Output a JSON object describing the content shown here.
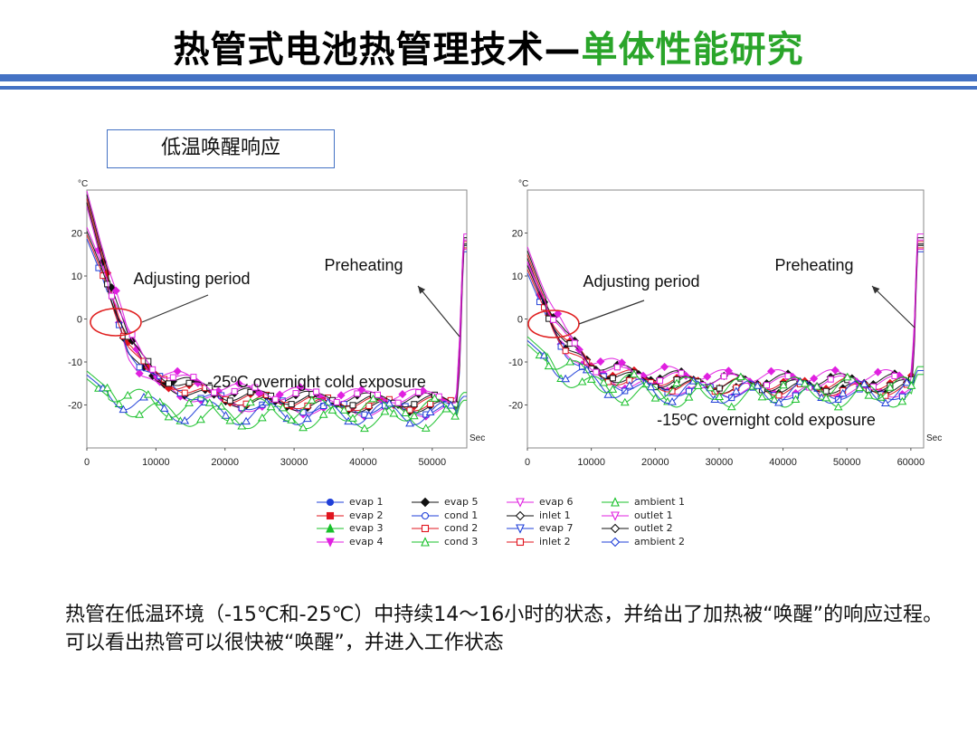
{
  "slide": {
    "title_main": "热管式电池热管理技术",
    "title_dash": "—",
    "title_sub": "单体性能研究",
    "box_label": "低温唤醒响应",
    "caption": "热管在低温环境（-15℃和-25℃）中持续14～16小时的状态，并给出了加热被“唤醒”的响应过程。可以看出热管可以很快被“唤醒”，并进入工作状态"
  },
  "colors": {
    "accent": "#4472c4",
    "subtitle": "#2aa52a"
  },
  "chart_data": [
    {
      "type": "line",
      "title": "-25ºC overnight cold exposure",
      "ylabel": "°C",
      "xlabel": "Sec",
      "xlim": [
        0,
        55000
      ],
      "ylim": [
        -30,
        30
      ],
      "xticks": [
        0,
        10000,
        20000,
        30000,
        40000,
        50000
      ],
      "yticks": [
        20,
        10,
        0,
        -10,
        -20
      ],
      "annotations": [
        "Adjusting period",
        "Preheating"
      ],
      "groups": [
        {
          "name": "evaporators",
          "values": [
            [
              0,
              28
            ],
            [
              2000,
              16
            ],
            [
              4000,
              5
            ],
            [
              6000,
              -6
            ],
            [
              8000,
              -11
            ],
            [
              10000,
              -14
            ],
            [
              15000,
              -16
            ],
            [
              20000,
              -18
            ],
            [
              30000,
              -19
            ],
            [
              40000,
              -19.5
            ],
            [
              53500,
              -19.5
            ],
            [
              54000,
              -5
            ],
            [
              54500,
              18
            ]
          ]
        },
        {
          "name": "condensers",
          "values": [
            [
              0,
              20
            ],
            [
              2000,
              12
            ],
            [
              4000,
              3
            ],
            [
              6000,
              -5
            ],
            [
              8000,
              -10
            ],
            [
              10000,
              -13
            ],
            [
              15000,
              -16
            ],
            [
              20000,
              -18
            ],
            [
              30000,
              -19
            ],
            [
              40000,
              -19.5
            ],
            [
              53500,
              -19.5
            ],
            [
              54000,
              -10
            ],
            [
              54500,
              17
            ]
          ]
        },
        {
          "name": "ambient",
          "values": [
            [
              0,
              -13
            ],
            [
              3000,
              -17
            ],
            [
              6000,
              -19
            ],
            [
              10000,
              -21
            ],
            [
              20000,
              -22
            ],
            [
              40000,
              -22
            ],
            [
              53500,
              -22
            ],
            [
              54000,
              -19
            ],
            [
              54500,
              -18
            ]
          ]
        }
      ]
    },
    {
      "type": "line",
      "title": "-15ºC overnight cold exposure",
      "ylabel": "°C",
      "xlabel": "Sec",
      "xlim": [
        0,
        62000
      ],
      "ylim": [
        -30,
        30
      ],
      "xticks": [
        0,
        10000,
        20000,
        30000,
        40000,
        50000,
        60000
      ],
      "yticks": [
        20,
        10,
        0,
        -10,
        -20
      ],
      "annotations": [
        "Adjusting period",
        "Preheating"
      ],
      "groups": [
        {
          "name": "evaporators",
          "values": [
            [
              0,
              15
            ],
            [
              2000,
              7
            ],
            [
              4000,
              0
            ],
            [
              6000,
              -5
            ],
            [
              8000,
              -8
            ],
            [
              10000,
              -11
            ],
            [
              15000,
              -13
            ],
            [
              20000,
              -14
            ],
            [
              30000,
              -15
            ],
            [
              40000,
              -15
            ],
            [
              60000,
              -15
            ],
            [
              60500,
              -5
            ],
            [
              61000,
              18
            ]
          ]
        },
        {
          "name": "condensers",
          "values": [
            [
              0,
              12
            ],
            [
              2000,
              5
            ],
            [
              4000,
              -1
            ],
            [
              6000,
              -6
            ],
            [
              8000,
              -9
            ],
            [
              10000,
              -12
            ],
            [
              15000,
              -14
            ],
            [
              20000,
              -15
            ],
            [
              30000,
              -15.5
            ],
            [
              40000,
              -16
            ],
            [
              60000,
              -16
            ],
            [
              60500,
              -8
            ],
            [
              61000,
              17
            ]
          ]
        },
        {
          "name": "ambient",
          "values": [
            [
              0,
              -5
            ],
            [
              3000,
              -9
            ],
            [
              6000,
              -12
            ],
            [
              10000,
              -15
            ],
            [
              20000,
              -17
            ],
            [
              40000,
              -17
            ],
            [
              60000,
              -17
            ],
            [
              60500,
              -14
            ],
            [
              61000,
              -12
            ]
          ]
        }
      ]
    }
  ],
  "legend": [
    {
      "label": "evap 1",
      "color": "#1f3fd8",
      "marker": "circle",
      "fill": true
    },
    {
      "label": "evap 2",
      "color": "#e0141e",
      "marker": "square",
      "fill": true
    },
    {
      "label": "evap 3",
      "color": "#18c02a",
      "marker": "triangle",
      "fill": true
    },
    {
      "label": "evap 4",
      "color": "#e020e0",
      "marker": "triangle-down",
      "fill": true
    },
    {
      "label": "evap 5",
      "color": "#111111",
      "marker": "diamond",
      "fill": true
    },
    {
      "label": "cond 1",
      "color": "#1f3fd8",
      "marker": "circle",
      "fill": false
    },
    {
      "label": "cond 2",
      "color": "#e0141e",
      "marker": "square",
      "fill": false
    },
    {
      "label": "cond 3",
      "color": "#18c02a",
      "marker": "triangle",
      "fill": false
    },
    {
      "label": "evap 6",
      "color": "#e020e0",
      "marker": "triangle-down",
      "fill": false
    },
    {
      "label": "inlet 1",
      "color": "#111111",
      "marker": "diamond",
      "fill": false
    },
    {
      "label": "evap 7",
      "color": "#1f3fd8",
      "marker": "triangle-down",
      "fill": false
    },
    {
      "label": "inlet 2",
      "color": "#e0141e",
      "marker": "square",
      "fill": false
    },
    {
      "label": "ambient 1",
      "color": "#18c02a",
      "marker": "triangle",
      "fill": false
    },
    {
      "label": "outlet 1",
      "color": "#e020e0",
      "marker": "triangle-down",
      "fill": false
    },
    {
      "label": "outlet 2",
      "color": "#111111",
      "marker": "diamond",
      "fill": false
    },
    {
      "label": "ambient 2",
      "color": "#1f3fd8",
      "marker": "diamond",
      "fill": false
    }
  ]
}
